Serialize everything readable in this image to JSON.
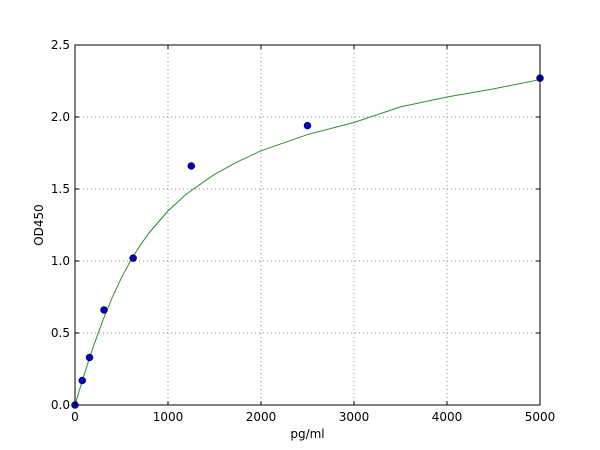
{
  "chart_data": {
    "type": "scatter",
    "xlabel": "pg/ml",
    "ylabel": "OD450",
    "xlim": [
      0,
      5000
    ],
    "ylim": [
      0,
      2.5
    ],
    "x_ticks": [
      "0",
      "1000",
      "2000",
      "3000",
      "4000",
      "5000"
    ],
    "y_ticks": [
      "0.0",
      "0.5",
      "1.0",
      "1.5",
      "2.0",
      "2.5"
    ],
    "grid": true,
    "points": [
      {
        "x": 0,
        "y": 0.0
      },
      {
        "x": 78,
        "y": 0.17
      },
      {
        "x": 156,
        "y": 0.33
      },
      {
        "x": 312,
        "y": 0.66
      },
      {
        "x": 625,
        "y": 1.02
      },
      {
        "x": 1250,
        "y": 1.66
      },
      {
        "x": 2500,
        "y": 1.94
      },
      {
        "x": 5000,
        "y": 2.27
      }
    ],
    "fit_curve": {
      "x": [
        0,
        50,
        100,
        150,
        200,
        300,
        400,
        500,
        600,
        700,
        800,
        1000,
        1200,
        1500,
        1750,
        2000,
        2500,
        3000,
        3500,
        4000,
        4500,
        5000
      ],
      "y": [
        0.0,
        0.108,
        0.213,
        0.314,
        0.411,
        0.589,
        0.746,
        0.884,
        1.004,
        1.108,
        1.198,
        1.348,
        1.466,
        1.602,
        1.69,
        1.765,
        1.878,
        1.962,
        2.07,
        2.139,
        2.195,
        2.26
      ]
    },
    "colors": {
      "points": "#0000bf",
      "curve": "#2b8f2b",
      "grid": "#8c8c8c",
      "frame": "#000000"
    }
  }
}
